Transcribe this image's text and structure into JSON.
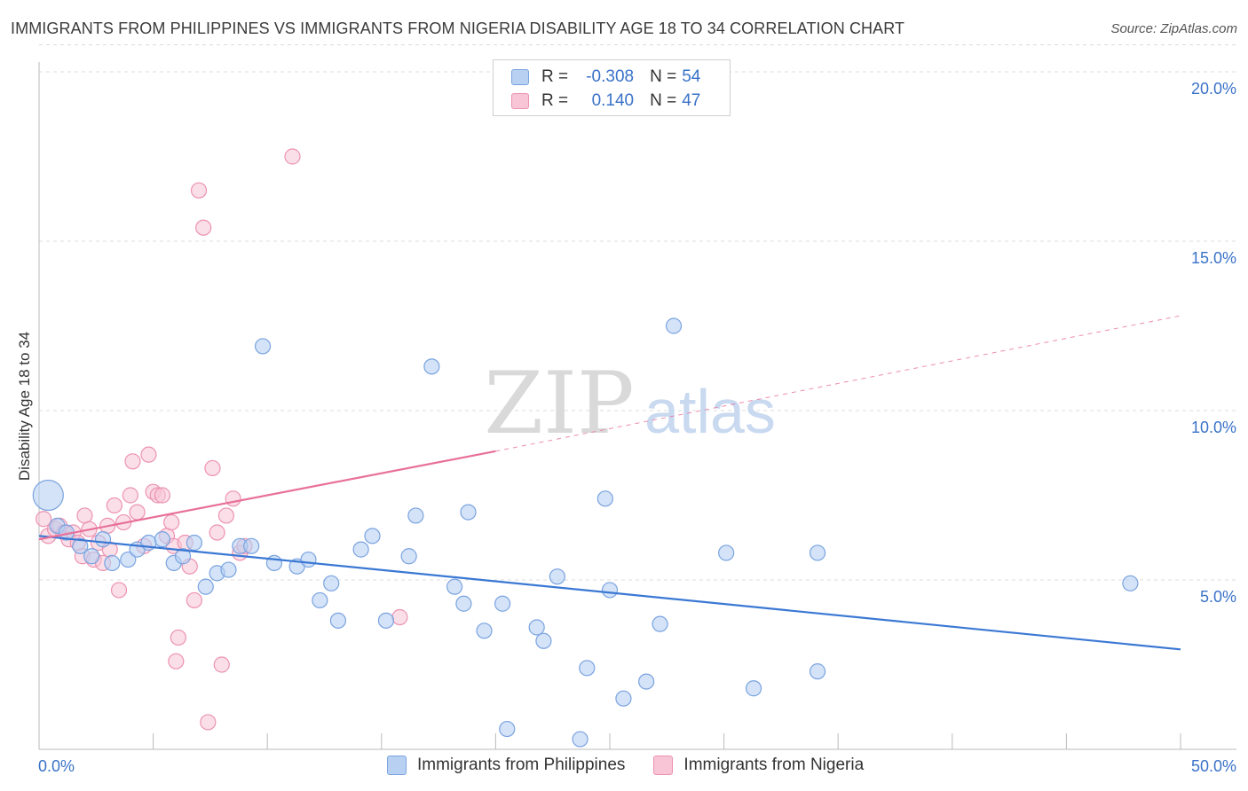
{
  "header": {
    "title": "IMMIGRANTS FROM PHILIPPINES VS IMMIGRANTS FROM NIGERIA DISABILITY AGE 18 TO 34 CORRELATION CHART",
    "source": "Source: ZipAtlas.com"
  },
  "legend": {
    "philippines": {
      "r_label": "R =",
      "r_value": "-0.308",
      "n_label": "N =",
      "n_value": "54"
    },
    "nigeria": {
      "r_label": "R =",
      "r_value": "0.140",
      "n_label": "N =",
      "n_value": "47"
    }
  },
  "watermark": {
    "zip": "ZIP",
    "atlas": "atlas"
  },
  "colors": {
    "blue": "#3a78d4",
    "blue_fill": "#b8d0f2",
    "pink": "#e8709a",
    "pink_fill": "#f8c5d6",
    "tick_label": "#3a72c8"
  },
  "chart_data": {
    "type": "scatter",
    "title": "IMMIGRANTS FROM PHILIPPINES VS IMMIGRANTS FROM NIGERIA DISABILITY AGE 18 TO 34 CORRELATION CHART",
    "xlabel": "",
    "ylabel": "Disability Age 18 to 34",
    "xlim": [
      0,
      50
    ],
    "ylim": [
      0,
      20.8
    ],
    "x_tick_labels": [
      "0.0%",
      "50.0%"
    ],
    "y_ticks": [
      5,
      10,
      15,
      20
    ],
    "y_tick_labels": [
      "5.0%",
      "10.0%",
      "15.0%",
      "20.0%"
    ],
    "grid": true,
    "series": [
      {
        "name": "Immigrants from Philippines",
        "r": -0.308,
        "n": 54,
        "trend": {
          "x0": 0,
          "y0": 6.3,
          "x1": 50,
          "y1": 2.95
        },
        "points": [
          [
            0.4,
            7.5
          ],
          [
            0.8,
            6.6
          ],
          [
            1.2,
            6.4
          ],
          [
            1.8,
            6.0
          ],
          [
            2.3,
            5.7
          ],
          [
            2.8,
            6.2
          ],
          [
            3.2,
            5.5
          ],
          [
            3.9,
            5.6
          ],
          [
            4.3,
            5.9
          ],
          [
            4.8,
            6.1
          ],
          [
            5.4,
            6.2
          ],
          [
            5.9,
            5.5
          ],
          [
            6.3,
            5.7
          ],
          [
            6.8,
            6.1
          ],
          [
            7.3,
            4.8
          ],
          [
            7.8,
            5.2
          ],
          [
            8.3,
            5.3
          ],
          [
            8.8,
            6.0
          ],
          [
            9.3,
            6.0
          ],
          [
            9.8,
            11.9
          ],
          [
            10.3,
            5.5
          ],
          [
            11.3,
            5.4
          ],
          [
            11.8,
            5.6
          ],
          [
            12.3,
            4.4
          ],
          [
            12.8,
            4.9
          ],
          [
            13.1,
            3.8
          ],
          [
            14.1,
            5.9
          ],
          [
            14.6,
            6.3
          ],
          [
            15.2,
            3.8
          ],
          [
            16.2,
            5.7
          ],
          [
            16.5,
            6.9
          ],
          [
            17.2,
            11.3
          ],
          [
            18.2,
            4.8
          ],
          [
            18.6,
            4.3
          ],
          [
            18.8,
            7.0
          ],
          [
            19.5,
            3.5
          ],
          [
            20.3,
            4.3
          ],
          [
            20.5,
            0.6
          ],
          [
            21.8,
            3.6
          ],
          [
            22.1,
            3.2
          ],
          [
            22.7,
            5.1
          ],
          [
            23.7,
            0.3
          ],
          [
            24.0,
            2.4
          ],
          [
            24.8,
            7.4
          ],
          [
            25.0,
            4.7
          ],
          [
            25.6,
            1.5
          ],
          [
            26.6,
            2.0
          ],
          [
            27.2,
            3.7
          ],
          [
            27.8,
            12.5
          ],
          [
            30.1,
            5.8
          ],
          [
            31.3,
            1.8
          ],
          [
            34.1,
            2.3
          ],
          [
            34.1,
            5.8
          ],
          [
            47.8,
            4.9
          ]
        ]
      },
      {
        "name": "Immigrants from Nigeria",
        "r": 0.14,
        "n": 47,
        "trend": {
          "x0": 0,
          "y0": 6.2,
          "x1": 20.0,
          "y1": 8.8,
          "dashed_x1": 50,
          "dashed_y1": 12.8
        },
        "points": [
          [
            0.2,
            6.8
          ],
          [
            0.4,
            6.3
          ],
          [
            0.7,
            6.5
          ],
          [
            0.9,
            6.6
          ],
          [
            1.1,
            6.4
          ],
          [
            1.3,
            6.2
          ],
          [
            1.5,
            6.4
          ],
          [
            1.7,
            6.1
          ],
          [
            1.9,
            5.7
          ],
          [
            2.0,
            6.9
          ],
          [
            2.2,
            6.5
          ],
          [
            2.4,
            5.6
          ],
          [
            2.6,
            6.1
          ],
          [
            2.8,
            5.5
          ],
          [
            3.0,
            6.6
          ],
          [
            3.1,
            5.9
          ],
          [
            3.3,
            7.2
          ],
          [
            3.5,
            4.7
          ],
          [
            3.7,
            6.7
          ],
          [
            4.0,
            7.5
          ],
          [
            4.1,
            8.5
          ],
          [
            4.3,
            7.0
          ],
          [
            4.6,
            6.0
          ],
          [
            4.8,
            8.7
          ],
          [
            5.0,
            7.6
          ],
          [
            5.2,
            7.5
          ],
          [
            5.4,
            7.5
          ],
          [
            5.6,
            6.3
          ],
          [
            5.8,
            6.7
          ],
          [
            5.9,
            6.0
          ],
          [
            6.0,
            2.6
          ],
          [
            6.1,
            3.3
          ],
          [
            6.4,
            6.1
          ],
          [
            6.6,
            5.4
          ],
          [
            6.8,
            4.4
          ],
          [
            7.0,
            16.5
          ],
          [
            7.2,
            15.4
          ],
          [
            7.4,
            0.8
          ],
          [
            7.6,
            8.3
          ],
          [
            7.8,
            6.4
          ],
          [
            8.0,
            2.5
          ],
          [
            8.2,
            6.9
          ],
          [
            8.5,
            7.4
          ],
          [
            8.8,
            5.8
          ],
          [
            11.1,
            17.5
          ],
          [
            15.8,
            3.9
          ],
          [
            9.0,
            6.0
          ]
        ]
      }
    ]
  }
}
